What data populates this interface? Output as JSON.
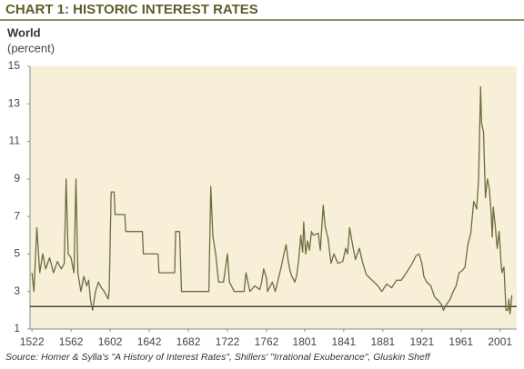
{
  "chart_data": {
    "type": "line",
    "title": "CHART 1: HISTORIC INTEREST RATES",
    "subtitle": "World",
    "y_label": "(percent)",
    "source": "Source: Homer & Sylla's \"A History of Interest Rates\", Shillers' \"Irrational Exuberance\", Gluskin Sheff",
    "color": "#6e6c3c",
    "reference_line": 2.2,
    "xlim": [
      1520,
      2018
    ],
    "ylim": [
      1,
      15
    ],
    "xticks": [
      1522,
      1562,
      1602,
      1642,
      1682,
      1722,
      1762,
      1801,
      1841,
      1881,
      1921,
      1961,
      2001
    ],
    "yticks": [
      1,
      3,
      5,
      7,
      9,
      11,
      13,
      15
    ],
    "x": [
      1522,
      1524,
      1527,
      1530,
      1533,
      1536,
      1540,
      1544,
      1548,
      1552,
      1555,
      1557,
      1559,
      1562,
      1565,
      1567,
      1569,
      1572,
      1575,
      1578,
      1580,
      1582,
      1584,
      1587,
      1590,
      1593,
      1596,
      1598,
      1600,
      1601,
      1603,
      1606,
      1607,
      1617,
      1618,
      1635,
      1636,
      1651,
      1652,
      1668,
      1669,
      1673,
      1675,
      1703,
      1705,
      1707,
      1710,
      1713,
      1718,
      1722,
      1724,
      1729,
      1739,
      1741,
      1745,
      1750,
      1755,
      1757,
      1759,
      1762,
      1763,
      1768,
      1771,
      1777,
      1779,
      1782,
      1784,
      1786,
      1788,
      1791,
      1793,
      1795,
      1797,
      1799,
      1800,
      1802,
      1804,
      1806,
      1808,
      1810,
      1815,
      1817,
      1820,
      1822,
      1825,
      1828,
      1831,
      1835,
      1840,
      1843,
      1845,
      1847,
      1850,
      1853,
      1857,
      1860,
      1864,
      1870,
      1876,
      1880,
      1885,
      1890,
      1895,
      1900,
      1905,
      1910,
      1915,
      1918,
      1921,
      1923,
      1926,
      1930,
      1934,
      1938,
      1941,
      1943,
      1946,
      1950,
      1953,
      1956,
      1959,
      1962,
      1965,
      1968,
      1971,
      1974,
      1977,
      1979,
      1981,
      1982,
      1984,
      1986,
      1988,
      1990,
      1992,
      1993,
      1994,
      1996,
      1998,
      2000,
      2002,
      2003,
      2004,
      2005,
      2007,
      2009,
      2010,
      2011,
      2012,
      2013
    ],
    "values": [
      4.0,
      3.0,
      6.4,
      4.0,
      5.0,
      4.2,
      4.8,
      4.0,
      4.6,
      4.2,
      4.5,
      9.0,
      5.0,
      4.8,
      4.0,
      9.0,
      4.0,
      3.0,
      3.8,
      3.3,
      3.6,
      2.5,
      2.0,
      3.0,
      3.5,
      3.2,
      3.0,
      2.8,
      2.6,
      3.0,
      8.3,
      8.3,
      7.1,
      7.1,
      6.2,
      6.2,
      5.0,
      5.0,
      4.0,
      4.0,
      6.2,
      6.2,
      3.0,
      3.0,
      8.6,
      6.0,
      5.0,
      3.5,
      3.5,
      5.0,
      3.5,
      3.0,
      3.0,
      4.0,
      3.0,
      3.3,
      3.1,
      3.5,
      4.2,
      3.7,
      3.0,
      3.5,
      3.0,
      4.3,
      4.8,
      5.5,
      4.7,
      4.1,
      3.8,
      3.5,
      3.9,
      4.7,
      6.0,
      5.1,
      6.7,
      5.0,
      5.7,
      5.2,
      6.2,
      6.0,
      6.1,
      5.2,
      7.6,
      6.5,
      5.8,
      4.5,
      5.0,
      4.5,
      4.6,
      5.3,
      5.0,
      6.4,
      5.5,
      4.7,
      5.3,
      4.6,
      3.9,
      3.6,
      3.3,
      3.0,
      3.4,
      3.2,
      3.6,
      3.6,
      4.0,
      4.4,
      4.9,
      5.0,
      4.5,
      3.8,
      3.5,
      3.3,
      2.7,
      2.5,
      2.3,
      2.0,
      2.3,
      2.6,
      3.0,
      3.3,
      4.0,
      4.1,
      4.3,
      5.5,
      6.1,
      7.8,
      7.4,
      9.0,
      13.9,
      12.0,
      11.5,
      8.0,
      9.0,
      8.5,
      7.0,
      5.9,
      7.5,
      6.5,
      5.3,
      6.2,
      4.5,
      4.0,
      4.2,
      4.3,
      2.0,
      2.0,
      2.6,
      1.8,
      2.2,
      2.8
    ]
  }
}
